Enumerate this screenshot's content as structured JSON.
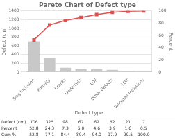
{
  "chart_data": {
    "type": "bar",
    "title": "Pareto Chart of Defect type",
    "xlabel": "Defect type",
    "ylabel": "Defect (cm)",
    "y2label": "Percent",
    "categories": [
      "Slag Inclusion",
      "Porosity",
      "Cracks",
      "Undercuts",
      "LOF",
      "Other Defects",
      "LOir",
      "Tungsten Inclusions"
    ],
    "series": [
      {
        "type": "bar",
        "color": "#c8c8c8",
        "values": [
          706,
          325,
          98,
          67,
          62,
          52,
          21,
          7
        ]
      },
      {
        "type": "line",
        "axis": "y2",
        "color": "#e05050",
        "marker": "square",
        "values": [
          52.8,
          77.1,
          84.4,
          89.4,
          94.0,
          97.9,
          99.5,
          100.0
        ]
      }
    ],
    "ylim": [
      0,
      1400
    ],
    "yticks": [
      0,
      200,
      400,
      600,
      800,
      1000,
      1200,
      1400
    ],
    "y2lim": [
      0,
      100
    ],
    "y2ticks": [
      0,
      20,
      40,
      60,
      80,
      100
    ],
    "grid": true,
    "table": {
      "rows": [
        "Defect (cm)",
        "Percent",
        "Cum %"
      ],
      "cells": [
        [
          "706",
          "325",
          "98",
          "67",
          "62",
          "52",
          "21",
          "7"
        ],
        [
          "52.8",
          "24.3",
          "7.3",
          "5.0",
          "4.6",
          "3.9",
          "1.6",
          "0.5"
        ],
        [
          "52.8",
          "77.1",
          "84.4",
          "89.4",
          "94.0",
          "97.9",
          "99.5",
          "100.0"
        ]
      ]
    }
  }
}
